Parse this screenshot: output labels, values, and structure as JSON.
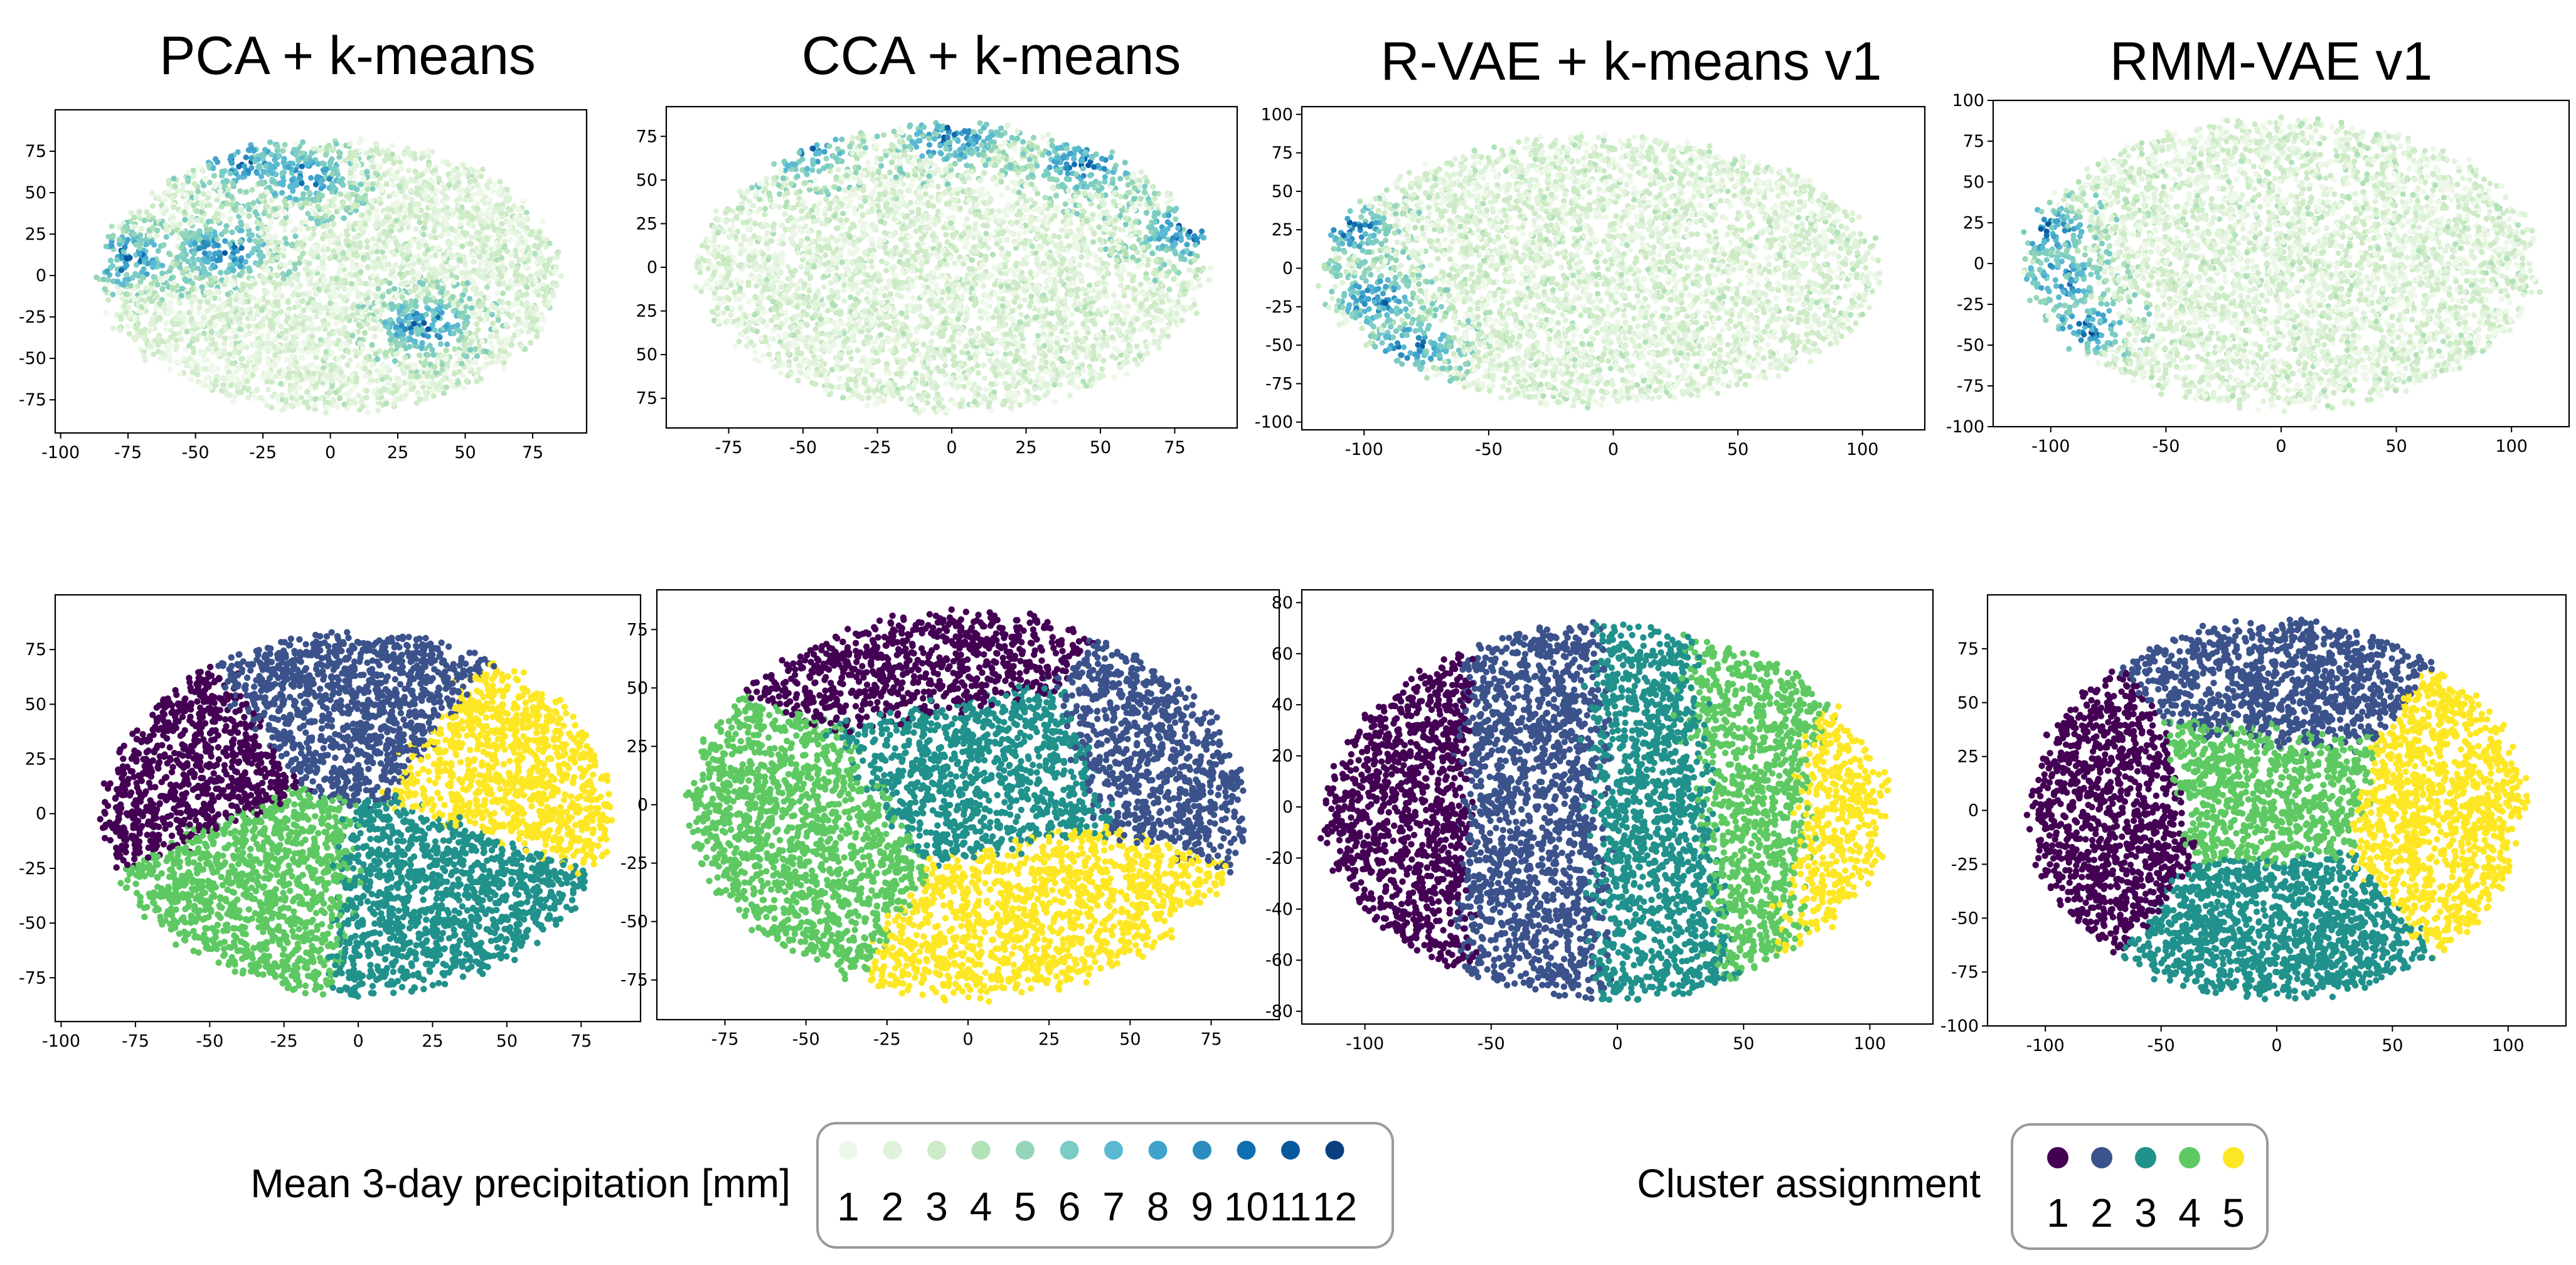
{
  "chart_data": [
    {
      "type": "scatter",
      "title": "PCA + k-means",
      "color_variable": "precipitation",
      "xlim": [
        -102,
        95
      ],
      "ylim": [
        -95,
        100
      ],
      "xticks": [
        "-100",
        "-75",
        "-50",
        "-25",
        "0",
        "25",
        "50",
        "75"
      ],
      "yticks": [
        "75",
        "50",
        "25",
        "0",
        "-25",
        "-50",
        "-75"
      ],
      "shape": {
        "cx": 0,
        "cy": 0,
        "rx": 88,
        "ry": 85
      },
      "hotspots": [
        [
          -32,
          70
        ],
        [
          -75,
          10
        ],
        [
          -40,
          15
        ],
        [
          -10,
          60
        ],
        [
          35,
          -30
        ]
      ]
    },
    {
      "type": "scatter",
      "title": "CCA + k-means",
      "color_variable": "precipitation",
      "xlim": [
        -96,
        96
      ],
      "ylim": [
        -92,
        92
      ],
      "xticks": [
        "-75",
        "-50",
        "-25",
        "0",
        "25",
        "50",
        "75"
      ],
      "yticks": [
        "75",
        "50",
        "25",
        "0",
        "25",
        "50",
        "75"
      ],
      "shape": {
        "cx": 0,
        "cy": 0,
        "rx": 88,
        "ry": 85
      },
      "hotspots": [
        [
          0,
          75
        ],
        [
          45,
          60
        ],
        [
          80,
          20
        ],
        [
          -50,
          70
        ]
      ]
    },
    {
      "type": "scatter",
      "title": "R-VAE + k-means v1",
      "color_variable": "precipitation",
      "xlim": [
        -125,
        125
      ],
      "ylim": [
        -105,
        105
      ],
      "xticks": [
        "-100",
        "-50",
        "0",
        "50",
        "100"
      ],
      "yticks": [
        "100",
        "75",
        "50",
        "25",
        "0",
        "-25",
        "-50",
        "-75",
        "-100"
      ],
      "shape": {
        "cx": -5,
        "cy": -2,
        "rx": 115,
        "ry": 90
      },
      "hotspots": [
        [
          -95,
          -20
        ],
        [
          -105,
          25
        ],
        [
          -80,
          -50
        ]
      ]
    },
    {
      "type": "scatter",
      "title": "RMM-VAE v1",
      "color_variable": "precipitation",
      "xlim": [
        -125,
        125
      ],
      "ylim": [
        -100,
        100
      ],
      "xticks": [
        "-100",
        "-50",
        "0",
        "50",
        "100"
      ],
      "yticks": [
        "100",
        "75",
        "50",
        "25",
        "0",
        "-25",
        "-50",
        "-75",
        "-100"
      ],
      "shape": {
        "cx": 0,
        "cy": 0,
        "rx": 115,
        "ry": 92
      },
      "hotspots": [
        [
          -95,
          -10
        ],
        [
          -100,
          20
        ],
        [
          -85,
          -40
        ]
      ]
    },
    {
      "type": "scatter",
      "title": "",
      "color_variable": "cluster",
      "xlim": [
        -102,
        95
      ],
      "ylim": [
        -95,
        100
      ],
      "xticks": [
        "-100",
        "-75",
        "-50",
        "-25",
        "0",
        "25",
        "50",
        "75"
      ],
      "yticks": [
        "75",
        "50",
        "25",
        "0",
        "-25",
        "-50",
        "-75"
      ],
      "shape": {
        "cx": 0,
        "cy": 0,
        "rx": 88,
        "ry": 85
      },
      "cluster_centers": [
        [
          -65,
          20
        ],
        [
          0,
          55
        ],
        [
          25,
          -40
        ],
        [
          -35,
          -35
        ],
        [
          55,
          25
        ]
      ]
    },
    {
      "type": "scatter",
      "title": "",
      "color_variable": "cluster",
      "xlim": [
        -96,
        96
      ],
      "ylim": [
        -92,
        92
      ],
      "xticks": [
        "-75",
        "-50",
        "-25",
        "0",
        "25",
        "50",
        "75"
      ],
      "yticks": [
        "75",
        "50",
        "25",
        "0",
        "-25",
        "-50",
        "-75"
      ],
      "shape": {
        "cx": 0,
        "cy": 0,
        "rx": 88,
        "ry": 85
      },
      "cluster_centers": [
        [
          -10,
          70
        ],
        [
          65,
          30
        ],
        [
          5,
          15
        ],
        [
          -55,
          -15
        ],
        [
          25,
          -50
        ]
      ]
    },
    {
      "type": "scatter",
      "title": "",
      "color_variable": "cluster",
      "xlim": [
        -125,
        125
      ],
      "ylim": [
        -85,
        85
      ],
      "xticks": [
        "-100",
        "-50",
        "0",
        "50",
        "100"
      ],
      "yticks": [
        "80",
        "60",
        "40",
        "20",
        "0",
        "-20",
        "-40",
        "-60",
        "-80"
      ],
      "shape": {
        "cx": -5,
        "cy": -2,
        "rx": 115,
        "ry": 75
      },
      "cluster_centers": [
        [
          -90,
          0
        ],
        [
          -30,
          0
        ],
        [
          15,
          0
        ],
        [
          55,
          5
        ],
        [
          95,
          0
        ]
      ]
    },
    {
      "type": "scatter",
      "title": "",
      "color_variable": "cluster",
      "xlim": [
        -125,
        125
      ],
      "ylim": [
        -100,
        100
      ],
      "xticks": [
        "-100",
        "-50",
        "0",
        "50",
        "100"
      ],
      "yticks": [
        "75",
        "50",
        "25",
        "0",
        "-25",
        "-50",
        "-75",
        "-100"
      ],
      "shape": {
        "cx": 0,
        "cy": 0,
        "rx": 110,
        "ry": 90
      },
      "cluster_centers": [
        [
          -80,
          0
        ],
        [
          0,
          55
        ],
        [
          0,
          -60
        ],
        [
          -5,
          15
        ],
        [
          80,
          0
        ]
      ]
    }
  ],
  "legends": {
    "precipitation": {
      "label": "Mean 3-day precipitation [mm]",
      "levels": [
        "1",
        "2",
        "3",
        "4",
        "5",
        "6",
        "7",
        "8",
        "9",
        "10",
        "11",
        "12"
      ],
      "colors": [
        "#edf8e9",
        "#dff2da",
        "#cdebc6",
        "#b2e2b8",
        "#94d5b9",
        "#7accc4",
        "#5ab9d2",
        "#3fa3cc",
        "#2b8cbe",
        "#0f6fae",
        "#08589e",
        "#0a3f80"
      ]
    },
    "cluster": {
      "label": "Cluster assignment",
      "levels": [
        "1",
        "2",
        "3",
        "4",
        "5"
      ],
      "colors": [
        "#440154",
        "#3b528b",
        "#21918c",
        "#5ec962",
        "#fde725"
      ]
    }
  }
}
